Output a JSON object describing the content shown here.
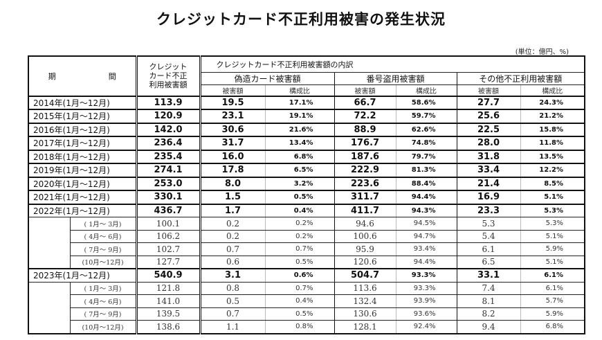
{
  "title": "クレジットカード不正利用被害の発生状況",
  "unit": "(単位：億円、%)",
  "headers": {
    "period": "期　　間",
    "total_line1": "クレジット",
    "total_line2": "カード不正",
    "total_line3": "利用被害額",
    "breakdown": "クレジットカード不正利用被害額の内訳",
    "groups": [
      "偽造カード被害額",
      "番号盗用被害額",
      "その他不正利用被害額"
    ],
    "sub_amount": "被害額",
    "sub_ratio": "構成比"
  },
  "rows": [
    {
      "type": "year",
      "period": "2014年(1月～12月)",
      "total": "113.9",
      "fake": "19.5",
      "fake_pct": "17.1%",
      "theft": "66.7",
      "theft_pct": "58.6%",
      "other": "27.7",
      "other_pct": "24.3%"
    },
    {
      "type": "year",
      "period": "2015年(1月～12月)",
      "total": "120.9",
      "fake": "23.1",
      "fake_pct": "19.1%",
      "theft": "72.2",
      "theft_pct": "59.7%",
      "other": "25.6",
      "other_pct": "21.2%"
    },
    {
      "type": "year",
      "period": "2016年(1月～12月)",
      "total": "142.0",
      "fake": "30.6",
      "fake_pct": "21.6%",
      "theft": "88.9",
      "theft_pct": "62.6%",
      "other": "22.5",
      "other_pct": "15.8%"
    },
    {
      "type": "year",
      "period": "2017年(1月～12月)",
      "total": "236.4",
      "fake": "31.7",
      "fake_pct": "13.4%",
      "theft": "176.7",
      "theft_pct": "74.8%",
      "other": "28.0",
      "other_pct": "11.8%"
    },
    {
      "type": "year",
      "period": "2018年(1月～12月)",
      "total": "235.4",
      "fake": "16.0",
      "fake_pct": "6.8%",
      "theft": "187.6",
      "theft_pct": "79.7%",
      "other": "31.8",
      "other_pct": "13.5%"
    },
    {
      "type": "year",
      "period": "2019年(1月～12月)",
      "total": "274.1",
      "fake": "17.8",
      "fake_pct": "6.5%",
      "theft": "222.9",
      "theft_pct": "81.3%",
      "other": "33.4",
      "other_pct": "12.2%"
    },
    {
      "type": "year",
      "period": "2020年(1月～12月)",
      "total": "253.0",
      "fake": "8.0",
      "fake_pct": "3.2%",
      "theft": "223.6",
      "theft_pct": "88.4%",
      "other": "21.4",
      "other_pct": "8.5%"
    },
    {
      "type": "year",
      "period": "2021年(1月～12月)",
      "total": "330.1",
      "fake": "1.5",
      "fake_pct": "0.5%",
      "theft": "311.7",
      "theft_pct": "94.4%",
      "other": "16.9",
      "other_pct": "5.1%"
    },
    {
      "type": "year",
      "period": "2022年(1月～12月)",
      "total": "436.7",
      "fake": "1.7",
      "fake_pct": "0.4%",
      "theft": "411.7",
      "theft_pct": "94.3%",
      "other": "23.3",
      "other_pct": "5.3%"
    },
    {
      "type": "quarter",
      "period": "( 1月～ 3月)",
      "total": "100.1",
      "fake": "0.2",
      "fake_pct": "0.2%",
      "theft": "94.6",
      "theft_pct": "94.5%",
      "other": "5.3",
      "other_pct": "5.3%"
    },
    {
      "type": "quarter",
      "period": "( 4月～ 6月)",
      "total": "106.2",
      "fake": "0.2",
      "fake_pct": "0.2%",
      "theft": "100.6",
      "theft_pct": "94.7%",
      "other": "5.4",
      "other_pct": "5.1%"
    },
    {
      "type": "quarter",
      "period": "( 7月～ 9月)",
      "total": "102.7",
      "fake": "0.7",
      "fake_pct": "0.7%",
      "theft": "95.9",
      "theft_pct": "93.4%",
      "other": "6.1",
      "other_pct": "5.9%"
    },
    {
      "type": "quarter",
      "period": "(10月～12月)",
      "total": "127.7",
      "fake": "0.6",
      "fake_pct": "0.5%",
      "theft": "120.6",
      "theft_pct": "94.4%",
      "other": "6.5",
      "other_pct": "5.1%"
    },
    {
      "type": "year",
      "period": "2023年(1月～12月)",
      "total": "540.9",
      "fake": "3.1",
      "fake_pct": "0.6%",
      "theft": "504.7",
      "theft_pct": "93.3%",
      "other": "33.1",
      "other_pct": "6.1%"
    },
    {
      "type": "quarter",
      "period": "( 1月～ 3月)",
      "total": "121.8",
      "fake": "0.8",
      "fake_pct": "0.7%",
      "theft": "113.6",
      "theft_pct": "93.3%",
      "other": "7.4",
      "other_pct": "6.1%"
    },
    {
      "type": "quarter",
      "period": "( 4月～ 6月)",
      "total": "141.0",
      "fake": "0.5",
      "fake_pct": "0.4%",
      "theft": "132.4",
      "theft_pct": "93.9%",
      "other": "8.1",
      "other_pct": "5.7%"
    },
    {
      "type": "quarter",
      "period": "( 7月～ 9月)",
      "total": "139.5",
      "fake": "0.7",
      "fake_pct": "0.5%",
      "theft": "130.6",
      "theft_pct": "93.6%",
      "other": "8.2",
      "other_pct": "5.9%"
    },
    {
      "type": "quarter",
      "period": "(10月～12月)",
      "total": "138.6",
      "fake": "1.1",
      "fake_pct": "0.8%",
      "theft": "128.1",
      "theft_pct": "92.4%",
      "other": "9.4",
      "other_pct": "6.8%"
    }
  ]
}
